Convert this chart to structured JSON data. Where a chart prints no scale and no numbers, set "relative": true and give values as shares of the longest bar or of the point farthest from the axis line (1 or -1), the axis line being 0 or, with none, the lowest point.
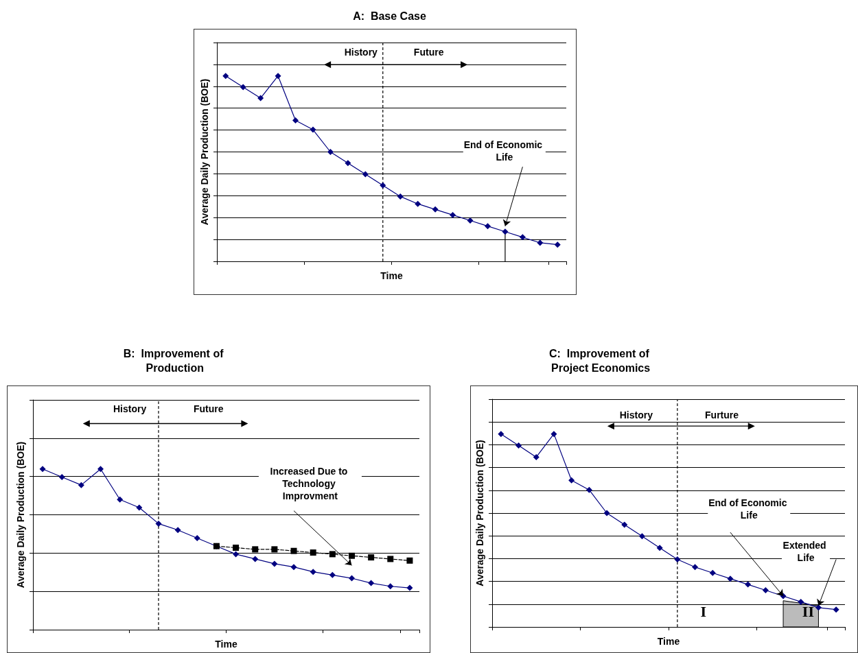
{
  "chart_data": [
    {
      "type": "line",
      "title": "A:  Base Case",
      "xlabel": "Time",
      "ylabel": "Average Daily Production (BOE)",
      "relative": true,
      "grid": "y",
      "marker": "diamond",
      "categories": [
        null,
        null,
        null,
        null,
        null,
        null,
        null,
        null,
        null,
        null,
        null,
        null,
        null,
        null,
        null,
        null,
        null,
        null,
        null,
        null
      ],
      "series": [
        {
          "color": "#000080",
          "values": [
            1,
            0.94,
            0.88,
            1,
            0.76,
            0.71,
            0.59,
            0.53,
            0.47,
            0.41,
            0.35,
            0.31,
            0.28,
            0.25,
            0.22,
            0.19,
            0.16,
            0.13,
            0.1,
            0.09
          ]
        }
      ],
      "annotations": [
        "History",
        "Future",
        "End of Economic Life"
      ]
    },
    {
      "type": "line",
      "title": "B:  Improvement of Production",
      "xlabel": "Time",
      "ylabel": "Average Daily Production (BOE)",
      "relative": true,
      "grid": "y",
      "marker": "diamond",
      "categories": [
        null,
        null,
        null,
        null,
        null,
        null,
        null,
        null,
        null,
        null,
        null,
        null,
        null,
        null,
        null,
        null,
        null,
        null,
        null,
        null
      ],
      "series": [
        {
          "color": "#000080",
          "values": [
            1,
            0.95,
            0.9,
            1,
            0.81,
            0.76,
            0.66,
            0.62,
            0.57,
            0.52,
            0.47,
            0.44,
            0.41,
            0.39,
            0.36,
            0.34,
            0.32,
            0.29,
            0.27,
            0.26
          ]
        },
        {
          "color": "#000000",
          "marker": "square",
          "line_style": "dashed",
          "values": [
            null,
            null,
            null,
            null,
            null,
            null,
            null,
            null,
            null,
            0.52,
            0.51,
            0.5,
            0.5,
            0.49,
            0.48,
            0.47,
            0.46,
            0.45,
            0.44,
            0.43
          ]
        }
      ],
      "annotations": [
        "History",
        "Future",
        "Increased Due to Technology Improvment"
      ]
    },
    {
      "type": "line",
      "title": "C:  Improvement of Project Economics",
      "xlabel": "Time",
      "ylabel": "Average Daily Production (BOE)",
      "relative": true,
      "grid": "y",
      "marker": "diamond",
      "categories": [
        null,
        null,
        null,
        null,
        null,
        null,
        null,
        null,
        null,
        null,
        null,
        null,
        null,
        null,
        null,
        null,
        null,
        null,
        null,
        null
      ],
      "series": [
        {
          "color": "#000080",
          "values": [
            1,
            0.94,
            0.88,
            1,
            0.76,
            0.71,
            0.59,
            0.53,
            0.47,
            0.41,
            0.35,
            0.31,
            0.28,
            0.25,
            0.22,
            0.19,
            0.16,
            0.13,
            0.1,
            0.09
          ]
        }
      ],
      "annotations": [
        "History",
        "Furture",
        "End of Economic Life",
        "Extended Life",
        "I",
        "II"
      ]
    }
  ]
}
